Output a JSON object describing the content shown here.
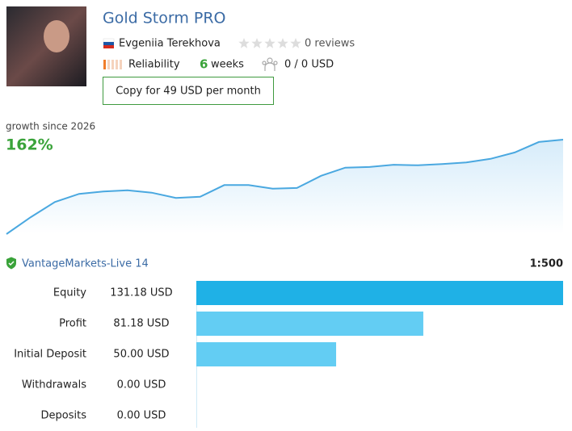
{
  "header": {
    "title": "Gold Storm PRO",
    "author": "Evgeniia Terekhova",
    "reviews": "0 reviews",
    "reliability": "Reliability",
    "weeks": "6",
    "weeks_unit": "weeks",
    "subscribers": "0 / 0 USD",
    "button": "Copy for 49 USD per month"
  },
  "growth": {
    "label": "growth since 2026",
    "value": "162%",
    "curve": [
      0,
      29,
      55,
      69,
      73,
      75,
      71,
      62,
      64,
      84,
      84,
      78,
      79,
      100,
      114,
      115,
      119,
      118,
      120,
      123,
      129,
      140,
      158,
      162
    ]
  },
  "account": {
    "broker": "VantageMarkets-Live 14",
    "leverage": "1:500"
  },
  "chart_data": {
    "type": "bar",
    "orientation": "horizontal",
    "categories": [
      "Equity",
      "Profit",
      "Initial Deposit",
      "Withdrawals",
      "Deposits"
    ],
    "values": [
      131.18,
      81.18,
      50,
      0,
      0
    ],
    "value_labels": [
      "131.18 USD",
      "81.18 USD",
      "50.00 USD",
      "0.00 USD",
      "0.00 USD"
    ],
    "colors": [
      "#1fb1e6",
      "#63cdf3",
      "#63cdf3",
      "#63cdf3",
      "#63cdf3"
    ]
  }
}
